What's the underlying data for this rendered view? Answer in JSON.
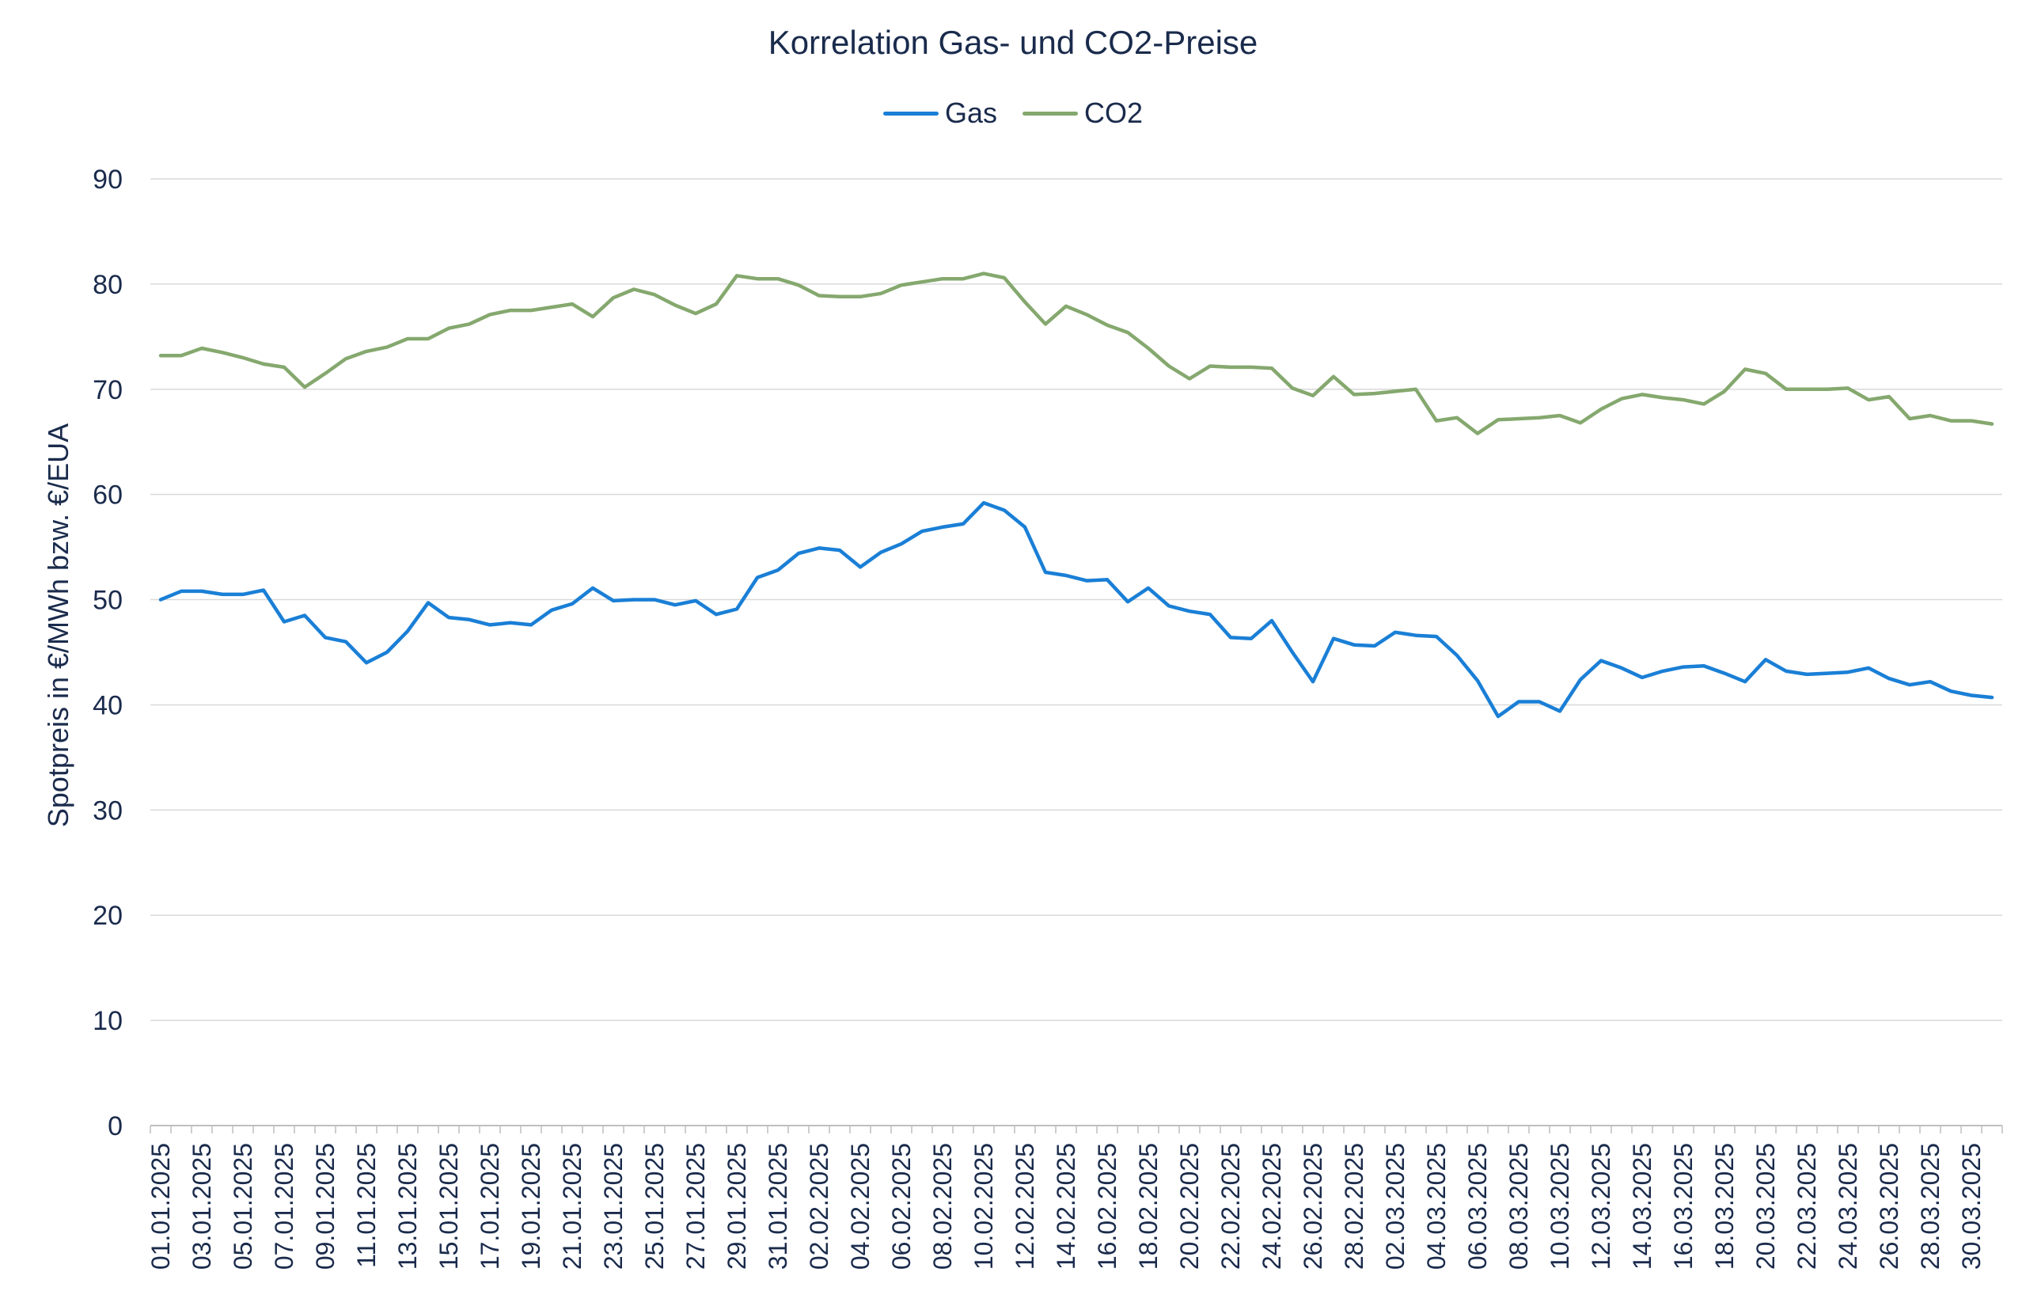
{
  "chart_data": {
    "type": "line",
    "title": "Korrelation Gas- und CO2-Preise",
    "ylabel": "Spotpreis in €/MWh bzw. €/EUA",
    "xlabel": "",
    "ylim": [
      0,
      90
    ],
    "yticks": [
      0,
      10,
      20,
      30,
      40,
      50,
      60,
      70,
      80,
      90
    ],
    "grid": true,
    "legend": "top-center",
    "x": [
      "01.01.2025",
      "02.01.2025",
      "03.01.2025",
      "04.01.2025",
      "05.01.2025",
      "06.01.2025",
      "07.01.2025",
      "08.01.2025",
      "09.01.2025",
      "10.01.2025",
      "11.01.2025",
      "12.01.2025",
      "13.01.2025",
      "14.01.2025",
      "15.01.2025",
      "16.01.2025",
      "17.01.2025",
      "18.01.2025",
      "19.01.2025",
      "20.01.2025",
      "21.01.2025",
      "22.01.2025",
      "23.01.2025",
      "24.01.2025",
      "25.01.2025",
      "26.01.2025",
      "27.01.2025",
      "28.01.2025",
      "29.01.2025",
      "30.01.2025",
      "31.01.2025",
      "01.02.2025",
      "02.02.2025",
      "03.02.2025",
      "04.02.2025",
      "05.02.2025",
      "06.02.2025",
      "07.02.2025",
      "08.02.2025",
      "09.02.2025",
      "10.02.2025",
      "11.02.2025",
      "12.02.2025",
      "13.02.2025",
      "14.02.2025",
      "15.02.2025",
      "16.02.2025",
      "17.02.2025",
      "18.02.2025",
      "19.02.2025",
      "20.02.2025",
      "21.02.2025",
      "22.02.2025",
      "23.02.2025",
      "24.02.2025",
      "25.02.2025",
      "26.02.2025",
      "27.02.2025",
      "28.02.2025",
      "01.03.2025",
      "02.03.2025",
      "03.03.2025",
      "04.03.2025",
      "05.03.2025",
      "06.03.2025",
      "07.03.2025",
      "08.03.2025",
      "09.03.2025",
      "10.03.2025",
      "11.03.2025",
      "12.03.2025",
      "13.03.2025",
      "14.03.2025",
      "15.03.2025",
      "16.03.2025",
      "17.03.2025",
      "18.03.2025",
      "19.03.2025",
      "20.03.2025",
      "21.03.2025",
      "22.03.2025",
      "23.03.2025",
      "24.03.2025",
      "25.03.2025",
      "26.03.2025",
      "27.03.2025",
      "28.03.2025",
      "29.03.2025",
      "30.03.2025",
      "31.03.2025"
    ],
    "xticks": [
      "01.01.2025",
      "03.01.2025",
      "05.01.2025",
      "07.01.2025",
      "09.01.2025",
      "11.01.2025",
      "13.01.2025",
      "15.01.2025",
      "17.01.2025",
      "19.01.2025",
      "21.01.2025",
      "23.01.2025",
      "25.01.2025",
      "27.01.2025",
      "29.01.2025",
      "31.01.2025",
      "02.02.2025",
      "04.02.2025",
      "06.02.2025",
      "08.02.2025",
      "10.02.2025",
      "12.02.2025",
      "14.02.2025",
      "16.02.2025",
      "18.02.2025",
      "20.02.2025",
      "22.02.2025",
      "24.02.2025",
      "26.02.2025",
      "28.02.2025",
      "02.03.2025",
      "04.03.2025",
      "06.03.2025",
      "08.03.2025",
      "10.03.2025",
      "12.03.2025",
      "14.03.2025",
      "16.03.2025",
      "18.03.2025",
      "20.03.2025",
      "22.03.2025",
      "24.03.2025",
      "26.03.2025",
      "28.03.2025",
      "30.03.2025"
    ],
    "series": [
      {
        "name": "Gas",
        "color": "#1a7fd6",
        "values": [
          50.0,
          50.8,
          50.8,
          50.5,
          50.5,
          50.9,
          47.9,
          48.5,
          46.4,
          46.0,
          44.0,
          45.0,
          47.0,
          49.7,
          48.3,
          48.1,
          47.6,
          47.8,
          47.6,
          49.0,
          49.6,
          51.1,
          49.9,
          50.0,
          50.0,
          49.5,
          49.9,
          48.6,
          49.1,
          52.1,
          52.8,
          54.4,
          54.9,
          54.7,
          53.1,
          54.5,
          55.3,
          56.5,
          56.9,
          57.2,
          59.2,
          58.5,
          56.9,
          52.6,
          52.3,
          51.8,
          51.9,
          49.8,
          51.1,
          49.4,
          48.9,
          48.6,
          46.4,
          46.3,
          48.0,
          45.0,
          42.2,
          46.3,
          45.7,
          45.6,
          46.9,
          46.6,
          46.5,
          44.7,
          42.3,
          38.9,
          40.3,
          40.3,
          39.4,
          42.4,
          44.2,
          43.5,
          42.6,
          43.2,
          43.6,
          43.7,
          43.0,
          42.2,
          44.3,
          43.2,
          42.9,
          43.0,
          43.1,
          43.5,
          42.5,
          41.9,
          42.2,
          41.3,
          40.9,
          40.7
        ]
      },
      {
        "name": "CO2",
        "color": "#85a86e",
        "values": [
          73.2,
          73.2,
          73.9,
          73.5,
          73.0,
          72.4,
          72.1,
          70.2,
          71.5,
          72.9,
          73.6,
          74.0,
          74.8,
          74.8,
          75.8,
          76.2,
          77.1,
          77.5,
          77.5,
          77.8,
          78.1,
          76.9,
          78.7,
          79.5,
          79.0,
          78.0,
          77.2,
          78.1,
          80.8,
          80.5,
          80.5,
          79.9,
          78.9,
          78.8,
          78.8,
          79.1,
          79.9,
          80.2,
          80.5,
          80.5,
          81.0,
          80.6,
          78.3,
          76.2,
          77.9,
          77.1,
          76.1,
          75.4,
          73.9,
          72.2,
          71.0,
          72.2,
          72.1,
          72.1,
          72.0,
          70.1,
          69.4,
          71.2,
          69.5,
          69.6,
          69.8,
          70.0,
          67.0,
          67.3,
          65.8,
          67.1,
          67.2,
          67.3,
          67.5,
          66.8,
          68.1,
          69.1,
          69.5,
          69.2,
          69.0,
          68.6,
          69.8,
          71.9,
          71.5,
          70.0,
          70.0,
          70.0,
          70.1,
          69.0,
          69.3,
          67.2,
          67.5,
          67.0,
          67.0,
          66.7
        ]
      }
    ]
  }
}
